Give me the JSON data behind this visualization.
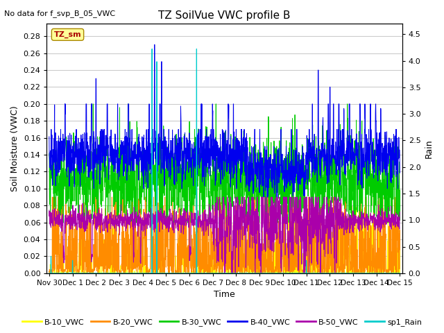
{
  "title": "TZ SoilVue VWC profile B",
  "top_left_note": "No data for f_svp_B_05_VWC",
  "ylabel_left": "Soil Moisture (VWC)",
  "ylabel_right": "Rain",
  "xlabel": "Time",
  "legend_labels": [
    "B-10_VWC",
    "B-20_VWC",
    "B-30_VWC",
    "B-40_VWC",
    "B-50_VWC",
    "sp1_Rain"
  ],
  "legend_colors": [
    "#FFFF00",
    "#FF8C00",
    "#00CC00",
    "#0000EE",
    "#AA00AA",
    "#00CCCC"
  ],
  "line_colors": {
    "B10": "#FFFF00",
    "B20": "#FF8C00",
    "B30": "#00CC00",
    "B40": "#0000EE",
    "B50": "#AA00AA",
    "Rain": "#00CCCC"
  },
  "tz_sm_box_facecolor": "#FFFF99",
  "tz_sm_box_edgecolor": "#AA8800",
  "tz_sm_text_color": "#AA0000",
  "x_tick_labels": [
    "Nov 30",
    "Dec 1",
    "Dec 2",
    "Dec 3",
    "Dec 4",
    "Dec 5",
    "Dec 6",
    "Dec 7",
    "Dec 8",
    "Dec 9",
    "Dec 10",
    "Dec 11",
    "Dec 12",
    "Dec 13",
    "Dec 14",
    "Dec 15"
  ],
  "ylim_left": [
    0.0,
    0.295
  ],
  "ylim_right": [
    0.0,
    4.7
  ],
  "yticks_left": [
    0.0,
    0.02,
    0.04,
    0.06,
    0.08,
    0.1,
    0.12,
    0.14,
    0.16,
    0.18,
    0.2,
    0.22,
    0.24,
    0.26,
    0.28
  ],
  "yticks_right": [
    0.0,
    0.5,
    1.0,
    1.5,
    2.0,
    2.5,
    3.0,
    3.5,
    4.0,
    4.5
  ],
  "plot_bg_color": "#FFFFFF",
  "grid_color": "#CCCCCC",
  "n_points": 2000,
  "seed": 42
}
